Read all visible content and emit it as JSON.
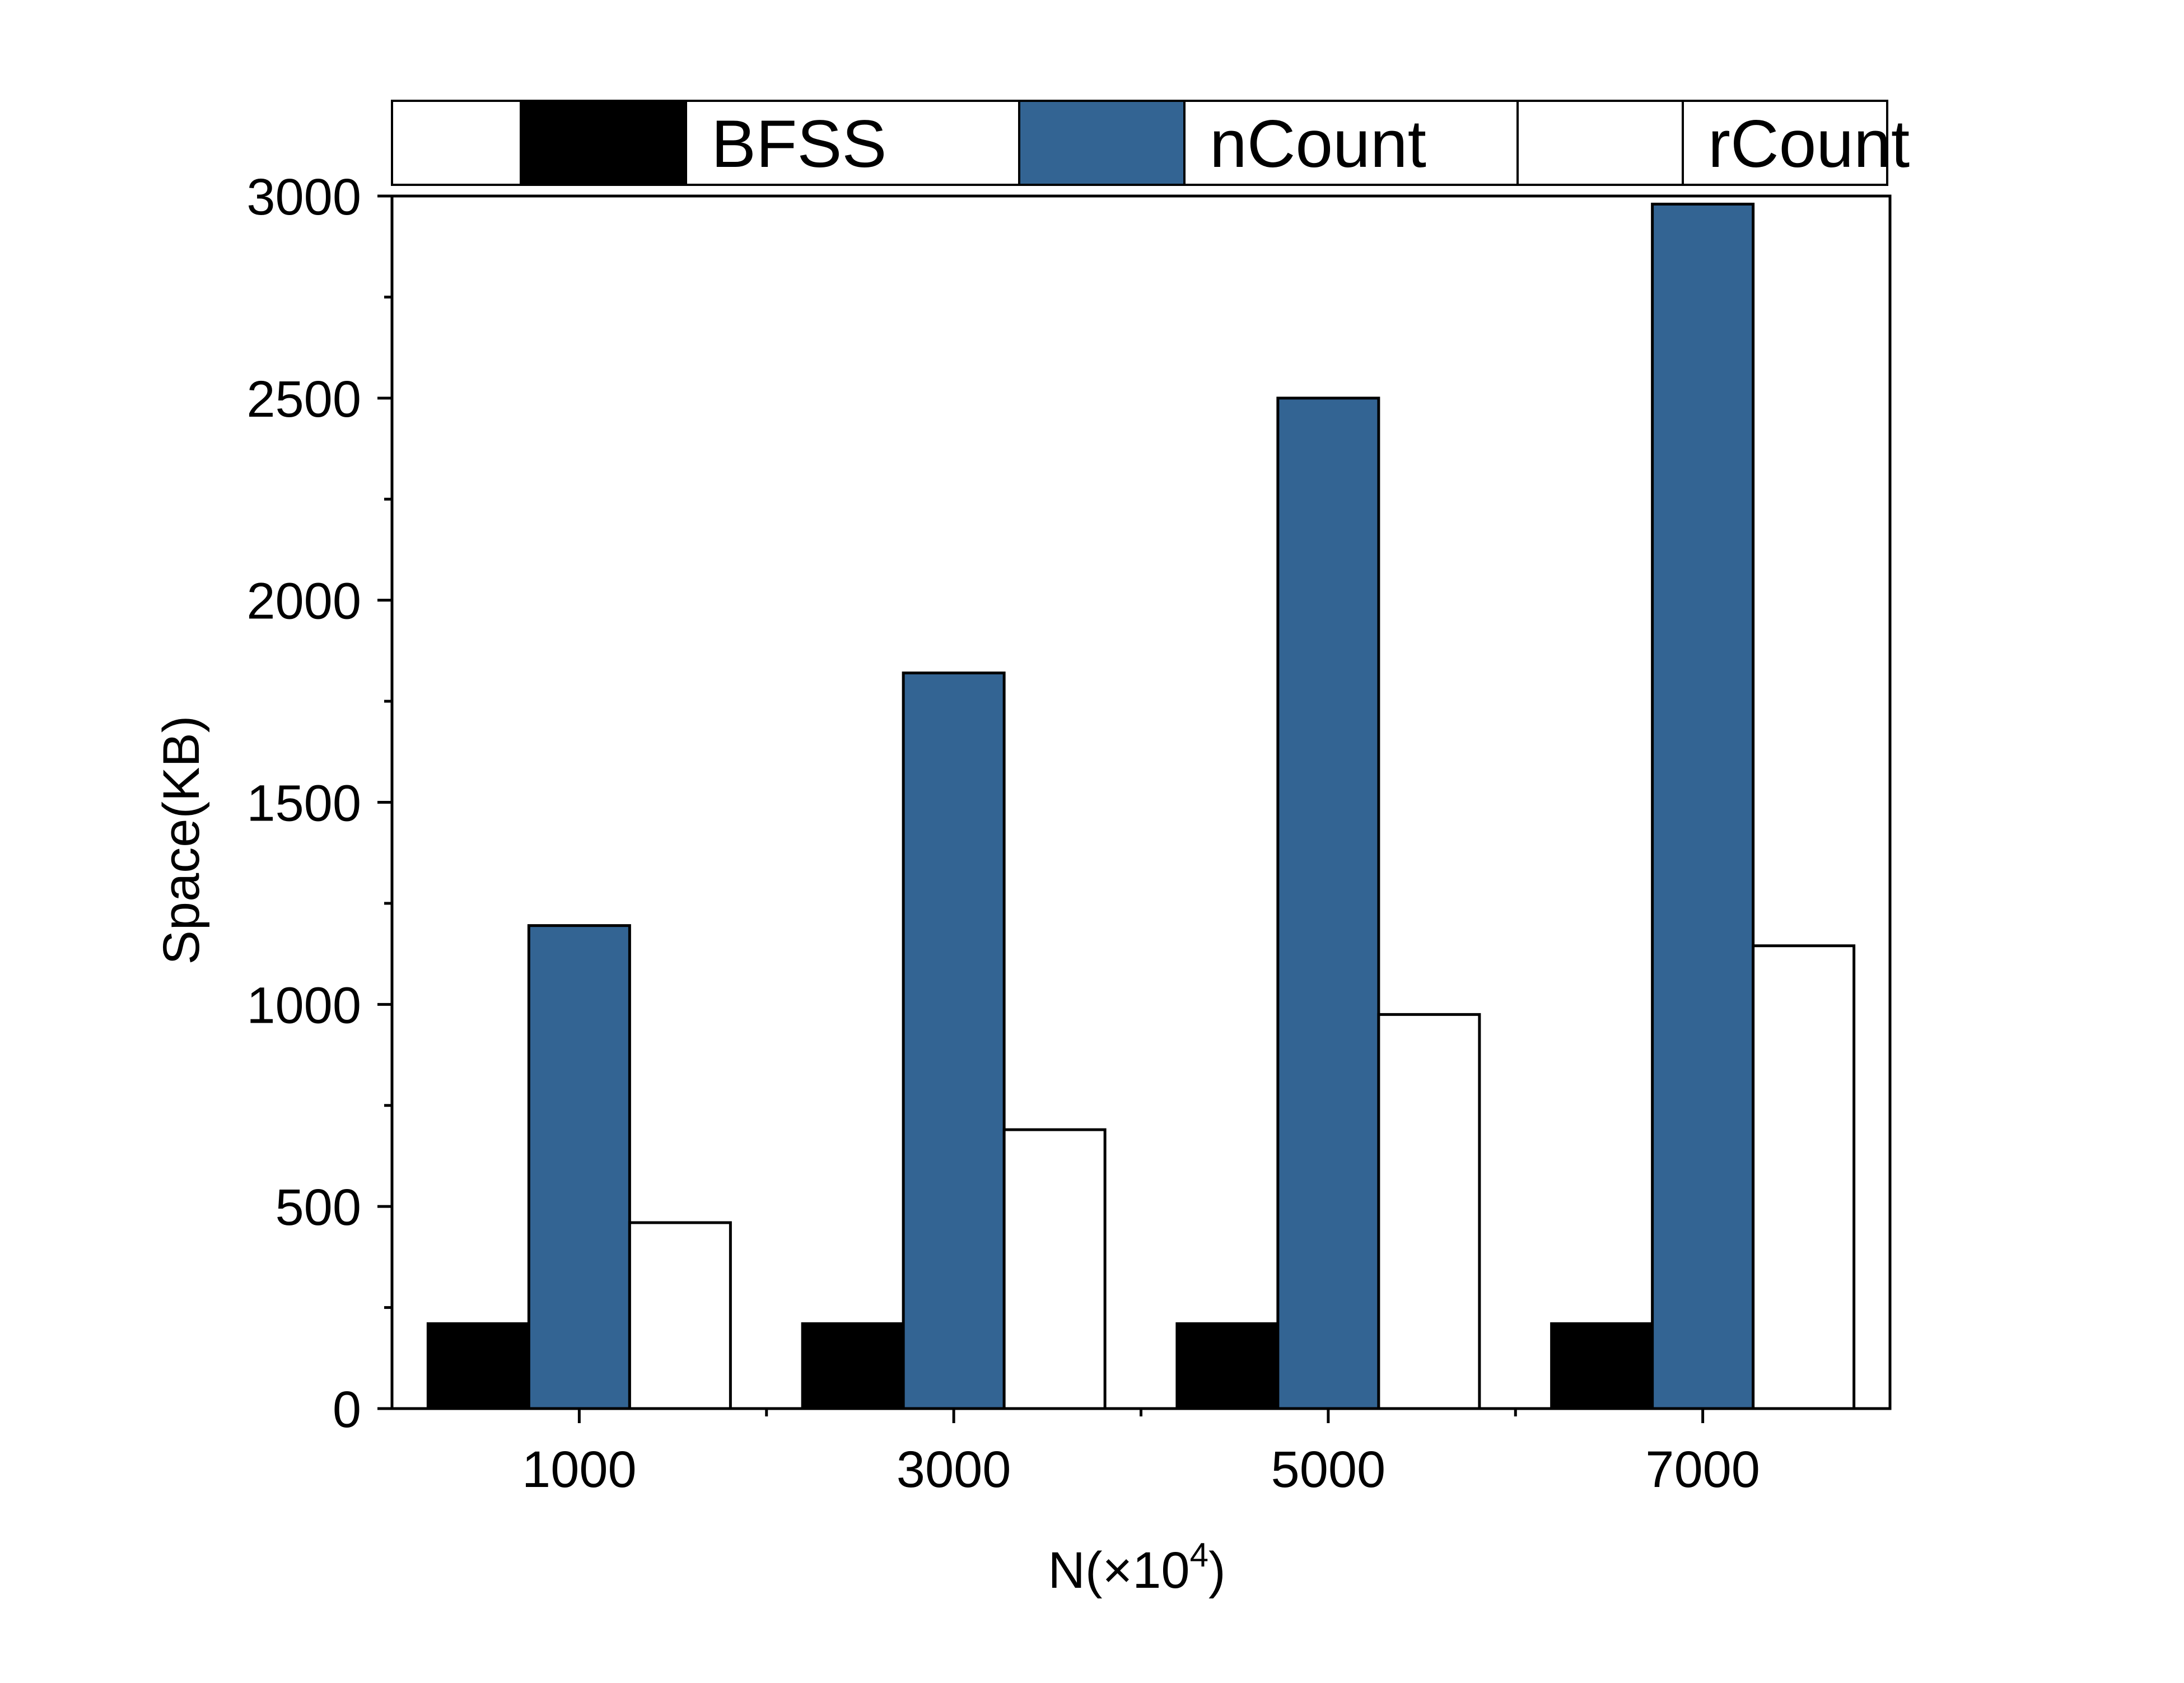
{
  "chart_data": {
    "type": "bar",
    "title": "",
    "xlabel": "N(×10",
    "xlabel_superscript": "4",
    "xlabel_suffix": ")",
    "ylabel": "Space(KB)",
    "categories": [
      "1000",
      "3000",
      "5000",
      "7000"
    ],
    "series": [
      {
        "name": "BFSS",
        "values": [
          210,
          210,
          210,
          210
        ],
        "color": "#000000"
      },
      {
        "name": "nCount",
        "values": [
          1195,
          1820,
          2500,
          2980
        ],
        "color": "#336493"
      },
      {
        "name": "rCount",
        "values": [
          460,
          690,
          975,
          1145
        ],
        "color": "#ffffff"
      }
    ],
    "ylim": [
      0,
      3000
    ],
    "yticks": [
      "0",
      "500",
      "1000",
      "1500",
      "2000",
      "2500",
      "3000"
    ],
    "grid": false,
    "legend_position": "top"
  }
}
